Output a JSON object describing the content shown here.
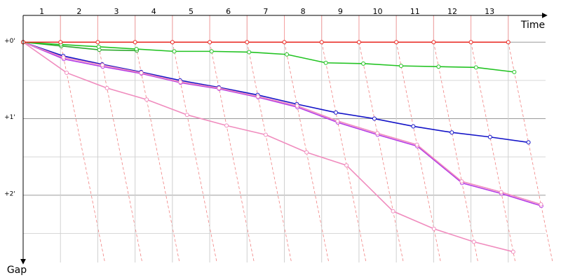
{
  "chart_data": {
    "type": "line",
    "x_label": "Time",
    "y_label": "Gap",
    "x": [
      0,
      1,
      2,
      3,
      4,
      5,
      6,
      7,
      8,
      9,
      10,
      11,
      12,
      13
    ],
    "xlim": [
      0,
      14
    ],
    "xticks": [
      1,
      2,
      3,
      4,
      5,
      6,
      7,
      8,
      9,
      10,
      11,
      12,
      13
    ],
    "ylim": [
      -0.35,
      2.88
    ],
    "yticks": [
      {
        "value": 0,
        "label": "+0'"
      },
      {
        "value": 1,
        "label": "+1'"
      },
      {
        "value": 2,
        "label": "+2'"
      }
    ],
    "yminor": [
      0.5,
      1.5,
      2.5
    ],
    "grid": true,
    "series": [
      {
        "color": "#b43ce6",
        "values": [
          0,
          0.22,
          0.32,
          0.41,
          0.53,
          0.61,
          0.72,
          0.85,
          1.05,
          1.21,
          1.36,
          1.84,
          1.98,
          2.14
        ]
      },
      {
        "color": "#f08cbe",
        "values": [
          0,
          0.4,
          0.6,
          0.75,
          0.95,
          1.09,
          1.21,
          1.44,
          1.61,
          2.21,
          2.44,
          2.61,
          2.74,
          null
        ]
      },
      {
        "color": "#1414c8",
        "values": [
          0,
          0.18,
          0.29,
          0.39,
          0.5,
          0.59,
          0.69,
          0.81,
          0.92,
          1.0,
          1.1,
          1.18,
          1.24,
          1.31
        ]
      },
      {
        "color": "#f08cbe",
        "values": [
          0,
          0.2,
          0.3,
          0.4,
          0.52,
          0.6,
          0.71,
          0.83,
          1.03,
          1.19,
          1.34,
          1.82,
          1.96,
          2.12
        ]
      },
      {
        "color": "#2ca82c",
        "values": [
          0,
          0.05,
          0.1,
          0.11,
          null,
          null,
          null,
          null,
          null,
          null,
          null,
          null,
          null,
          null
        ]
      },
      {
        "color": "#22c322",
        "values": [
          0,
          0.03,
          0.06,
          0.09,
          0.12,
          0.12,
          0.13,
          0.16,
          0.27,
          0.28,
          0.31,
          0.32,
          0.33,
          0.39
        ]
      },
      {
        "color": "#e8251f",
        "values": [
          0,
          0,
          0,
          0,
          0,
          0,
          0,
          0,
          0,
          0,
          0,
          0,
          0,
          0
        ]
      }
    ]
  }
}
